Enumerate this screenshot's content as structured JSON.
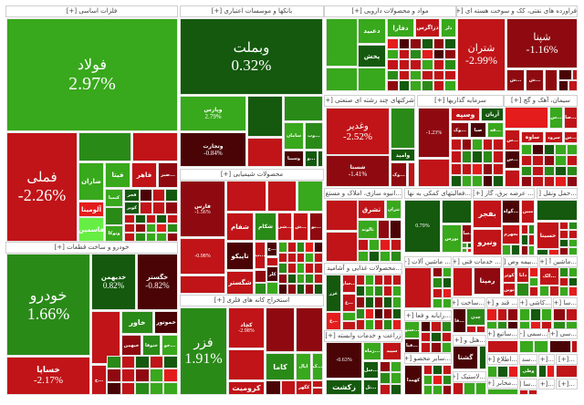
{
  "palette": {
    "G": "#38a81c",
    "g": "#2a8a18",
    "K": "#14590d",
    "R": "#c01418",
    "D": "#8e0a10",
    "X": "#4a0406",
    "B": "#e41c1c",
    "L": "#66ee44"
  },
  "sectors": [
    {
      "header": "فلزات اساسی [+]",
      "tiles": [
        {
          "label": "فولاد",
          "pct": "2.97%",
          "c": "G"
        },
        {
          "label": "فملی",
          "pct": "-2.26%",
          "c": "R"
        },
        {
          "label": "",
          "c": "g"
        },
        {
          "label": "",
          "c": "R"
        },
        {
          "label": "ضاران",
          "c": "G"
        },
        {
          "label": "فیتا",
          "c": "G"
        },
        {
          "label": "فاهر",
          "c": "R"
        },
        {
          "label": "...ضیز",
          "c": "D"
        },
        {
          "label": "کیمیا",
          "c": "G"
        },
        {
          "label": "فجر",
          "c": "K"
        },
        {
          "label": "آلومینا",
          "c": "B"
        },
        {
          "label": "فاسمین",
          "c": "L"
        },
        {
          "label": "ونوکا",
          "c": "G"
        },
        {
          "label": "کویر",
          "c": "K"
        }
      ]
    },
    {
      "header": "خودرو و ساخت قطعات [+]",
      "tiles": [
        {
          "label": "خودرو",
          "pct": "1.66%",
          "c": "g"
        },
        {
          "label": "خساپا",
          "pct": "-2.17%",
          "c": "R"
        },
        {
          "label": "خدیهمن",
          "pct": "0.82%",
          "c": "K"
        },
        {
          "label": "خگستر",
          "pct": "-0.82%",
          "c": "X"
        },
        {
          "label": "",
          "c": "R"
        },
        {
          "label": "خاور",
          "c": "g"
        },
        {
          "label": "خموتور",
          "c": "X"
        },
        {
          "label": "خبهمن",
          "c": "D"
        },
        {
          "label": "ختوقا",
          "c": "g"
        },
        {
          "label": "...خو",
          "c": "G"
        },
        {
          "label": "...خ",
          "c": "R"
        }
      ]
    },
    {
      "header": "بانکها و موسسات اعتباری [+]",
      "tiles": [
        {
          "label": "وبملت",
          "pct": "0.32%",
          "c": "K"
        },
        {
          "label": "وپارس",
          "pct": "2.79%",
          "c": "G"
        },
        {
          "label": "",
          "c": "K"
        },
        {
          "label": "",
          "c": "g"
        },
        {
          "label": "سامان",
          "c": "G"
        },
        {
          "label": "...وب",
          "c": "g"
        },
        {
          "label": "وتجارت",
          "pct": "-0.84%",
          "c": "X"
        },
        {
          "label": "",
          "c": "R"
        },
        {
          "label": "وسینا",
          "c": "X"
        },
        {
          "label": "...و",
          "c": "K"
        }
      ]
    },
    {
      "header": "محصولات شیمیایی [+]",
      "tiles": [
        {
          "label": "فارس",
          "pct": "-1.56%",
          "c": "D"
        },
        {
          "label": "",
          "c": "R"
        },
        {
          "label": "",
          "c": "R"
        },
        {
          "label": "",
          "c": "G"
        },
        {
          "label": "",
          "pct": "-0.98%",
          "c": "R"
        },
        {
          "label": "",
          "c": "R"
        },
        {
          "label": "شفام",
          "c": "R"
        },
        {
          "label": "شکام",
          "c": "g"
        },
        {
          "label": "...شی",
          "c": "R"
        },
        {
          "label": "...ش",
          "c": "R"
        },
        {
          "label": "...بو",
          "c": "D"
        },
        {
          "label": "تاپیکو",
          "c": "X"
        },
        {
          "label": "شگستر",
          "c": "R"
        },
        {
          "label": "...پ",
          "c": "R"
        },
        {
          "label": "...ج",
          "c": "X"
        },
        {
          "label": "کلر",
          "c": "X"
        }
      ]
    },
    {
      "header": "استخراج کانه های فلزی [+]",
      "tiles": [
        {
          "label": "فزر",
          "pct": "1.91%",
          "c": "g"
        },
        {
          "label": "کچاد",
          "pct": "-2.98%",
          "c": "R"
        },
        {
          "label": "",
          "c": "D"
        },
        {
          "label": "",
          "c": "D"
        },
        {
          "label": "",
          "c": "R"
        },
        {
          "label": "کاما",
          "c": "g"
        },
        {
          "label": "اپال",
          "c": "G"
        },
        {
          "label": "...ک",
          "c": "G"
        },
        {
          "label": "کرومیت",
          "c": "R"
        },
        {
          "label": "کگهر",
          "c": "R"
        }
      ]
    },
    {
      "header": "مواد و محصولات دارویی [+]",
      "tiles": [
        {
          "label": "",
          "c": "G"
        },
        {
          "label": "دعبید",
          "c": "G"
        },
        {
          "label": "پخش",
          "c": "K"
        },
        {
          "label": "",
          "c": "G"
        },
        {
          "label": "",
          "c": "G"
        },
        {
          "label": "دفارا",
          "c": "G"
        },
        {
          "label": "دزاگرس",
          "c": "R"
        },
        {
          "label": "دلر",
          "c": "G"
        }
      ]
    },
    {
      "header": "فراورده های نفتی، کک و سوخت هسته ای [+]",
      "tiles": [
        {
          "label": "شتران",
          "pct": "-2.99%",
          "c": "R"
        },
        {
          "label": "شپنا",
          "pct": "-1.16%",
          "c": "D"
        },
        {
          "label": "...ش",
          "c": "D"
        },
        {
          "label": "...ش",
          "c": "D"
        },
        {
          "label": "",
          "c": "D"
        },
        {
          "label": "",
          "c": "X"
        }
      ]
    },
    {
      "header": "شرکتهای چند رشته ای صنعتی [+]",
      "tiles": [
        {
          "label": "وغدیر",
          "pct": "-2.52%",
          "c": "R"
        },
        {
          "label": "شستا",
          "pct": "-1.41%",
          "c": "D"
        },
        {
          "label": "",
          "c": "g"
        },
        {
          "label": "وامید",
          "c": "K"
        },
        {
          "label": "...وک",
          "c": "D"
        },
        {
          "label": "",
          "c": "R"
        }
      ]
    },
    {
      "header": "سرمایه گذاریها [+]",
      "tiles": [
        {
          "label": "",
          "pct": "-1.23%",
          "c": "D"
        },
        {
          "label": "وسپه",
          "c": "R"
        },
        {
          "label": "آریان",
          "c": "K"
        },
        {
          "label": "...وک",
          "c": "D"
        },
        {
          "label": "صبا",
          "c": "X"
        },
        {
          "label": "...فه",
          "c": "G"
        },
        {
          "label": "",
          "c": "R"
        }
      ]
    },
    {
      "header": "سیمان، آهک و گچ [+]",
      "tiles": [
        {
          "label": "",
          "c": "B"
        },
        {
          "label": "...س",
          "c": "G"
        },
        {
          "label": "...صا",
          "c": "R"
        },
        {
          "label": "ساوه",
          "c": "R"
        },
        {
          "label": "سرود",
          "c": "R"
        },
        {
          "label": "...س",
          "c": "R"
        },
        {
          "label": "...س",
          "c": "R"
        },
        {
          "label": "...س",
          "c": "X"
        },
        {
          "label": "",
          "c": "R"
        }
      ]
    },
    {
      "header": "...انبوه سازی، املاک و مستغ [+]",
      "tiles": [
        {
          "label": "",
          "c": "R"
        },
        {
          "label": "",
          "c": "R"
        },
        {
          "label": "ثشرق",
          "c": "R"
        },
        {
          "label": "ثالوند",
          "c": "G"
        },
        {
          "label": "ثتران",
          "c": "G"
        }
      ]
    },
    {
      "header": "...فعالیتهای کمکی به نها [+]",
      "tiles": [
        {
          "label": "",
          "pct": "0.79%",
          "c": "K"
        },
        {
          "label": "",
          "c": "K"
        },
        {
          "label": "بورس",
          "c": "G"
        },
        {
          "label": "...سان",
          "c": "D"
        }
      ]
    },
    {
      "header": "... عرضه برق، گاز [+]",
      "tiles": [
        {
          "label": "بفجر",
          "c": "R"
        },
        {
          "label": "...گواه",
          "c": "X"
        },
        {
          "label": "ونیرو",
          "c": "R"
        },
        {
          "label": "بجهرم",
          "c": "R"
        },
        {
          "label": "مبین",
          "c": "R"
        }
      ]
    },
    {
      "header": "...حمل ونقل [+]",
      "tiles": [
        {
          "label": "",
          "c": "K"
        },
        {
          "label": "حسینا",
          "c": "R"
        }
      ]
    },
    {
      "header": "...محصولات غذایی و آشامید [+]",
      "tiles": [
        {
          "label": "غزر",
          "c": "K"
        },
        {
          "label": "...ساز",
          "c": "R"
        },
        {
          "label": "...غ",
          "c": "R"
        },
        {
          "label": "...غ",
          "c": "B"
        }
      ]
    },
    {
      "header": "... ماشین آلات [+]",
      "tiles": [
        {
          "label": "",
          "c": "R"
        }
      ]
    },
    {
      "header": "... خدمات فنی [+]",
      "tiles": [
        {
          "label": "",
          "c": "R"
        },
        {
          "label": "رمپنا",
          "c": "D"
        }
      ]
    },
    {
      "header": "...بیمه وص [+]",
      "tiles": [
        {
          "label": "کوثر",
          "c": "R"
        },
        {
          "label": "دانا",
          "c": "R"
        },
        {
          "label": "نوین",
          "c": "R"
        }
      ]
    },
    {
      "header": "...ماشین آ [+]",
      "tiles": [
        {
          "label": "...الک",
          "c": "R"
        }
      ]
    },
    {
      "header": "زراعت و خدمات وابسته [+]",
      "tiles": [
        {
          "label": "",
          "pct": "-0.63%",
          "c": "X"
        },
        {
          "label": "...زماه",
          "c": "G"
        },
        {
          "label": "سپید",
          "c": "R"
        },
        {
          "label": "...سل",
          "c": "K"
        },
        {
          "label": "...تل",
          "c": "K"
        },
        {
          "label": "زکشت",
          "c": "K"
        }
      ]
    },
    {
      "header": "...ساخت [+]",
      "tiles": [
        {
          "label": "...فا",
          "c": "X"
        },
        {
          "label": "چدن",
          "c": "g"
        }
      ]
    },
    {
      "header": "... قند و [+]",
      "tiles": []
    },
    {
      "header": "...کاشی [+]",
      "tiles": []
    },
    {
      "header": "...سا [+]",
      "tiles": []
    },
    {
      "header": "...رایانه و فعا [+]",
      "tiles": [
        {
          "label": "...ستو",
          "c": "G"
        },
        {
          "label": "...فنا",
          "c": "X"
        }
      ]
    },
    {
      "header": "...هتل و [+]",
      "tiles": [
        {
          "label": "گشتا",
          "c": "X"
        },
        {
          "label": "",
          "c": "K"
        }
      ]
    },
    {
      "header": "...سایر محصو [+]",
      "tiles": [
        {
          "label": "کهمدا",
          "c": "X"
        }
      ]
    },
    {
      "header": "...لاستیک [+]",
      "tiles": []
    },
    {
      "header": "...ساتیع [+]",
      "tiles": [
        {
          "label": "",
          "c": "R"
        }
      ]
    },
    {
      "header": "...سمی [+]",
      "tiles": []
    },
    {
      "header": "...سی [+]",
      "tiles": [
        {
          "label": "",
          "c": "X"
        }
      ]
    },
    {
      "header": "...اطلاع [+]",
      "tiles": []
    },
    {
      "header": "...سد [+]",
      "tiles": [
        {
          "label": "وطی",
          "c": "g"
        }
      ]
    },
    {
      "header": "...[+]",
      "tiles": []
    },
    {
      "header": "...[+]",
      "tiles": []
    },
    {
      "header": "...مخابر [+]",
      "tiles": [
        {
          "label": "",
          "c": "G"
        }
      ]
    },
    {
      "header": "...سا [+]",
      "tiles": []
    },
    {
      "header": "...[+]",
      "tiles": []
    },
    {
      "header": "...[+]",
      "tiles": []
    }
  ]
}
